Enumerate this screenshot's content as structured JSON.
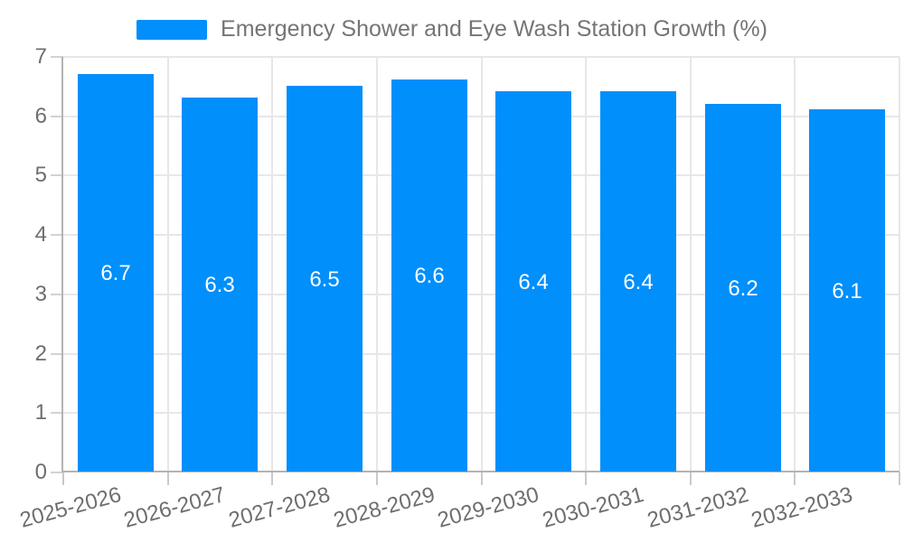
{
  "legend": {
    "label": "Emergency Shower and Eye Wash Station Growth (%)",
    "swatch_color": "#008FFB"
  },
  "chart_data": {
    "type": "bar",
    "title": "Emergency Shower and Eye Wash Station Growth (%)",
    "categories": [
      "2025-2026",
      "2026-2027",
      "2027-2028",
      "2028-2029",
      "2029-2030",
      "2030-2031",
      "2031-2032",
      "2032-2033"
    ],
    "values": [
      6.7,
      6.3,
      6.5,
      6.6,
      6.4,
      6.4,
      6.2,
      6.1
    ],
    "data_labels": [
      "6.7",
      "6.3",
      "6.5",
      "6.6",
      "6.4",
      "6.4",
      "6.2",
      "6.1"
    ],
    "xlabel": "",
    "ylabel": "",
    "ylim": [
      0,
      7
    ],
    "yticks": [
      "0",
      "1",
      "2",
      "3",
      "4",
      "5",
      "6",
      "7"
    ],
    "grid": true,
    "legend_position": "top",
    "x_label_rotation_deg": -15,
    "colors": {
      "bar": "#008FFB",
      "data_label": "#ffffff",
      "axis_label": "#6e6e6e",
      "title": "#757575",
      "gridline": "#e7e7e7",
      "axis_line": "#b3b3b3"
    }
  }
}
